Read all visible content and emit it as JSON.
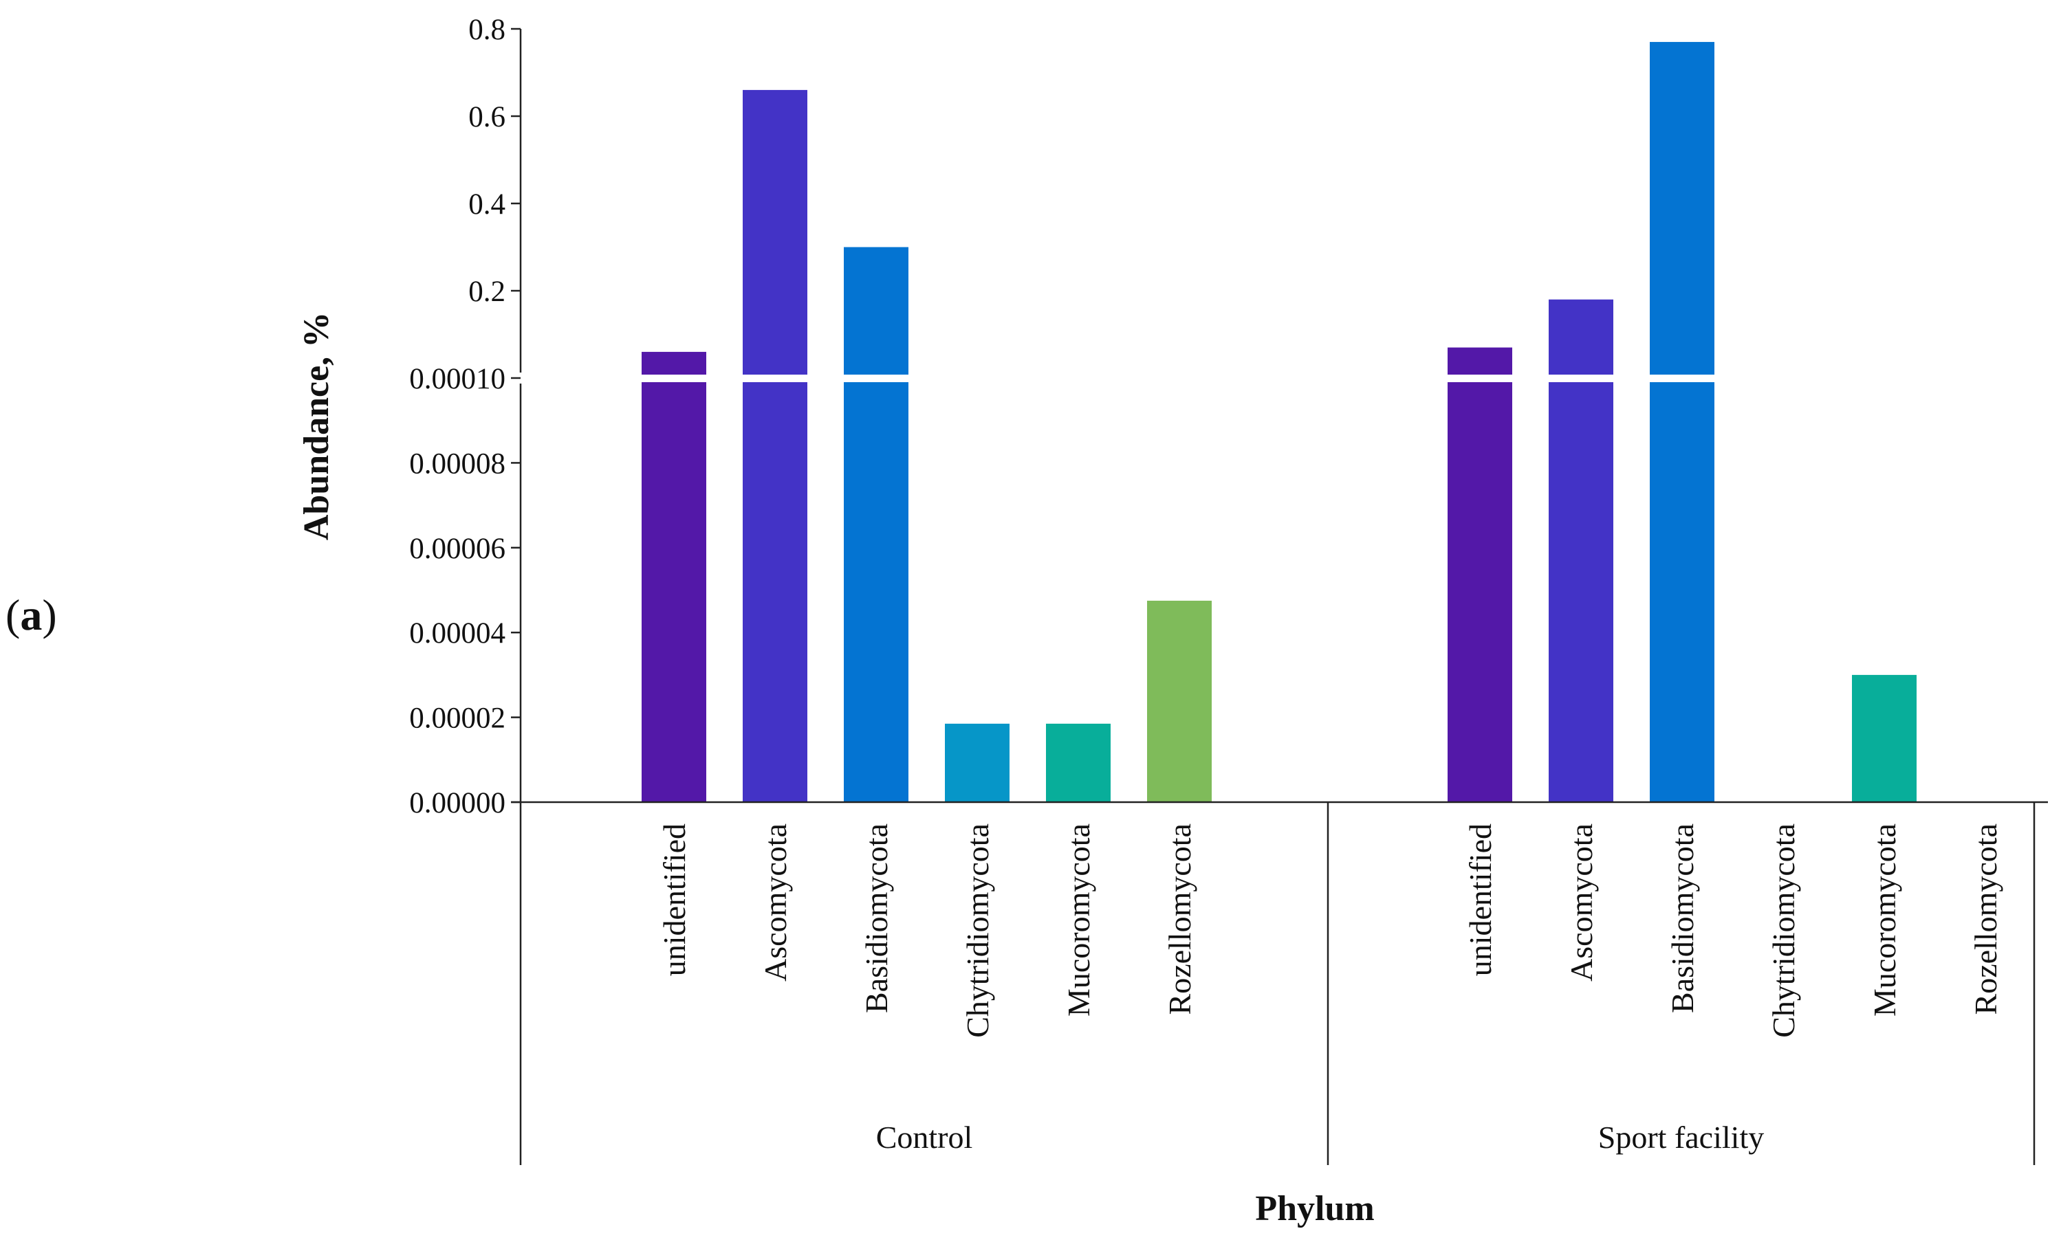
{
  "panel_label": {
    "open": "(",
    "letter": "a",
    "close": ")"
  },
  "chart_data": {
    "type": "bar",
    "title": "",
    "xlabel": "Phylum",
    "ylabel": "Abundance, %",
    "axis_break": true,
    "lower_ylim": [
      0,
      0.0001
    ],
    "lower_ticks": [
      "0.00000",
      "0.00002",
      "0.00004",
      "0.00006",
      "0.00008",
      "0.00010"
    ],
    "upper_ylim": [
      0,
      0.8
    ],
    "upper_ticks": [
      "0.2",
      "0.4",
      "0.6",
      "0.8"
    ],
    "categories": [
      "unidentified",
      "Ascomycota",
      "Basidiomycota",
      "Chytridiomycota",
      "Mucoromycota",
      "Rozellomycota"
    ],
    "series": [
      {
        "name": "Control",
        "values": [
          0.06,
          0.66,
          0.3,
          1.85e-05,
          1.85e-05,
          4.75e-05
        ]
      },
      {
        "name": "Sport facility",
        "values": [
          0.07,
          0.18,
          0.77,
          0,
          3e-05,
          0
        ]
      }
    ],
    "colors": [
      "#5318a8",
      "#4333c6",
      "#0474d2",
      "#0696c8",
      "#08ae9a",
      "#7fbb5a"
    ]
  }
}
